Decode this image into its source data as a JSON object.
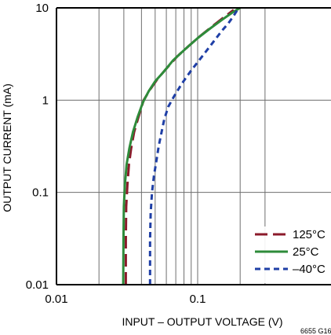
{
  "chart_data": {
    "type": "line",
    "title": "",
    "xlabel": "INPUT – OUTPUT VOLTAGE (V)",
    "ylabel": "OUTPUT CURRENT (mA)",
    "x_scale": "log",
    "y_scale": "log",
    "xlim": [
      0.01,
      0.3
    ],
    "ylim": [
      0.01,
      10
    ],
    "grid": true,
    "x_ticks": [
      {
        "value": 0.01,
        "label": "0.01"
      },
      {
        "value": 0.1,
        "label": "0.1"
      }
    ],
    "y_ticks": [
      {
        "value": 0.01,
        "label": "0.01"
      },
      {
        "value": 0.1,
        "label": "0.1"
      },
      {
        "value": 1,
        "label": "1"
      },
      {
        "value": 10,
        "label": "10"
      }
    ],
    "legend_position": "bottom-right",
    "series": [
      {
        "name": "125°C",
        "color": "#8b1a2b",
        "style": "longdash",
        "x": [
          0.031,
          0.031,
          0.0312,
          0.0318,
          0.0326,
          0.0338,
          0.0355,
          0.038,
          0.0415,
          0.046,
          0.052,
          0.06,
          0.072,
          0.087,
          0.105,
          0.125,
          0.15,
          0.18
        ],
        "y": [
          0.01,
          0.03,
          0.07,
          0.12,
          0.2,
          0.3,
          0.45,
          0.65,
          1.0,
          1.3,
          1.7,
          2.2,
          3.0,
          3.9,
          5.0,
          6.2,
          7.7,
          9.5
        ]
      },
      {
        "name": "25°C",
        "color": "#2e8b3a",
        "style": "solid",
        "x": [
          0.0297,
          0.0298,
          0.03,
          0.0305,
          0.0314,
          0.0328,
          0.0348,
          0.0375,
          0.041,
          0.045,
          0.05,
          0.057,
          0.067,
          0.082,
          0.1,
          0.123,
          0.15,
          0.178,
          0.2
        ],
        "y": [
          0.01,
          0.03,
          0.07,
          0.12,
          0.2,
          0.3,
          0.45,
          0.65,
          0.95,
          1.25,
          1.6,
          2.0,
          2.7,
          3.6,
          4.7,
          6.0,
          7.5,
          9.0,
          10.0
        ]
      },
      {
        "name": "–40°C",
        "color": "#1f3fa6",
        "style": "shortdash",
        "x": [
          0.046,
          0.046,
          0.0465,
          0.0475,
          0.049,
          0.051,
          0.053,
          0.0555,
          0.058,
          0.062,
          0.068,
          0.077,
          0.09,
          0.108,
          0.128,
          0.148,
          0.165,
          0.18,
          0.192
        ],
        "y": [
          0.01,
          0.03,
          0.06,
          0.1,
          0.15,
          0.22,
          0.32,
          0.45,
          0.62,
          0.85,
          1.1,
          1.5,
          2.1,
          3.0,
          4.2,
          5.6,
          6.8,
          8.2,
          9.6
        ]
      }
    ]
  },
  "figure_id": "6655 G16"
}
